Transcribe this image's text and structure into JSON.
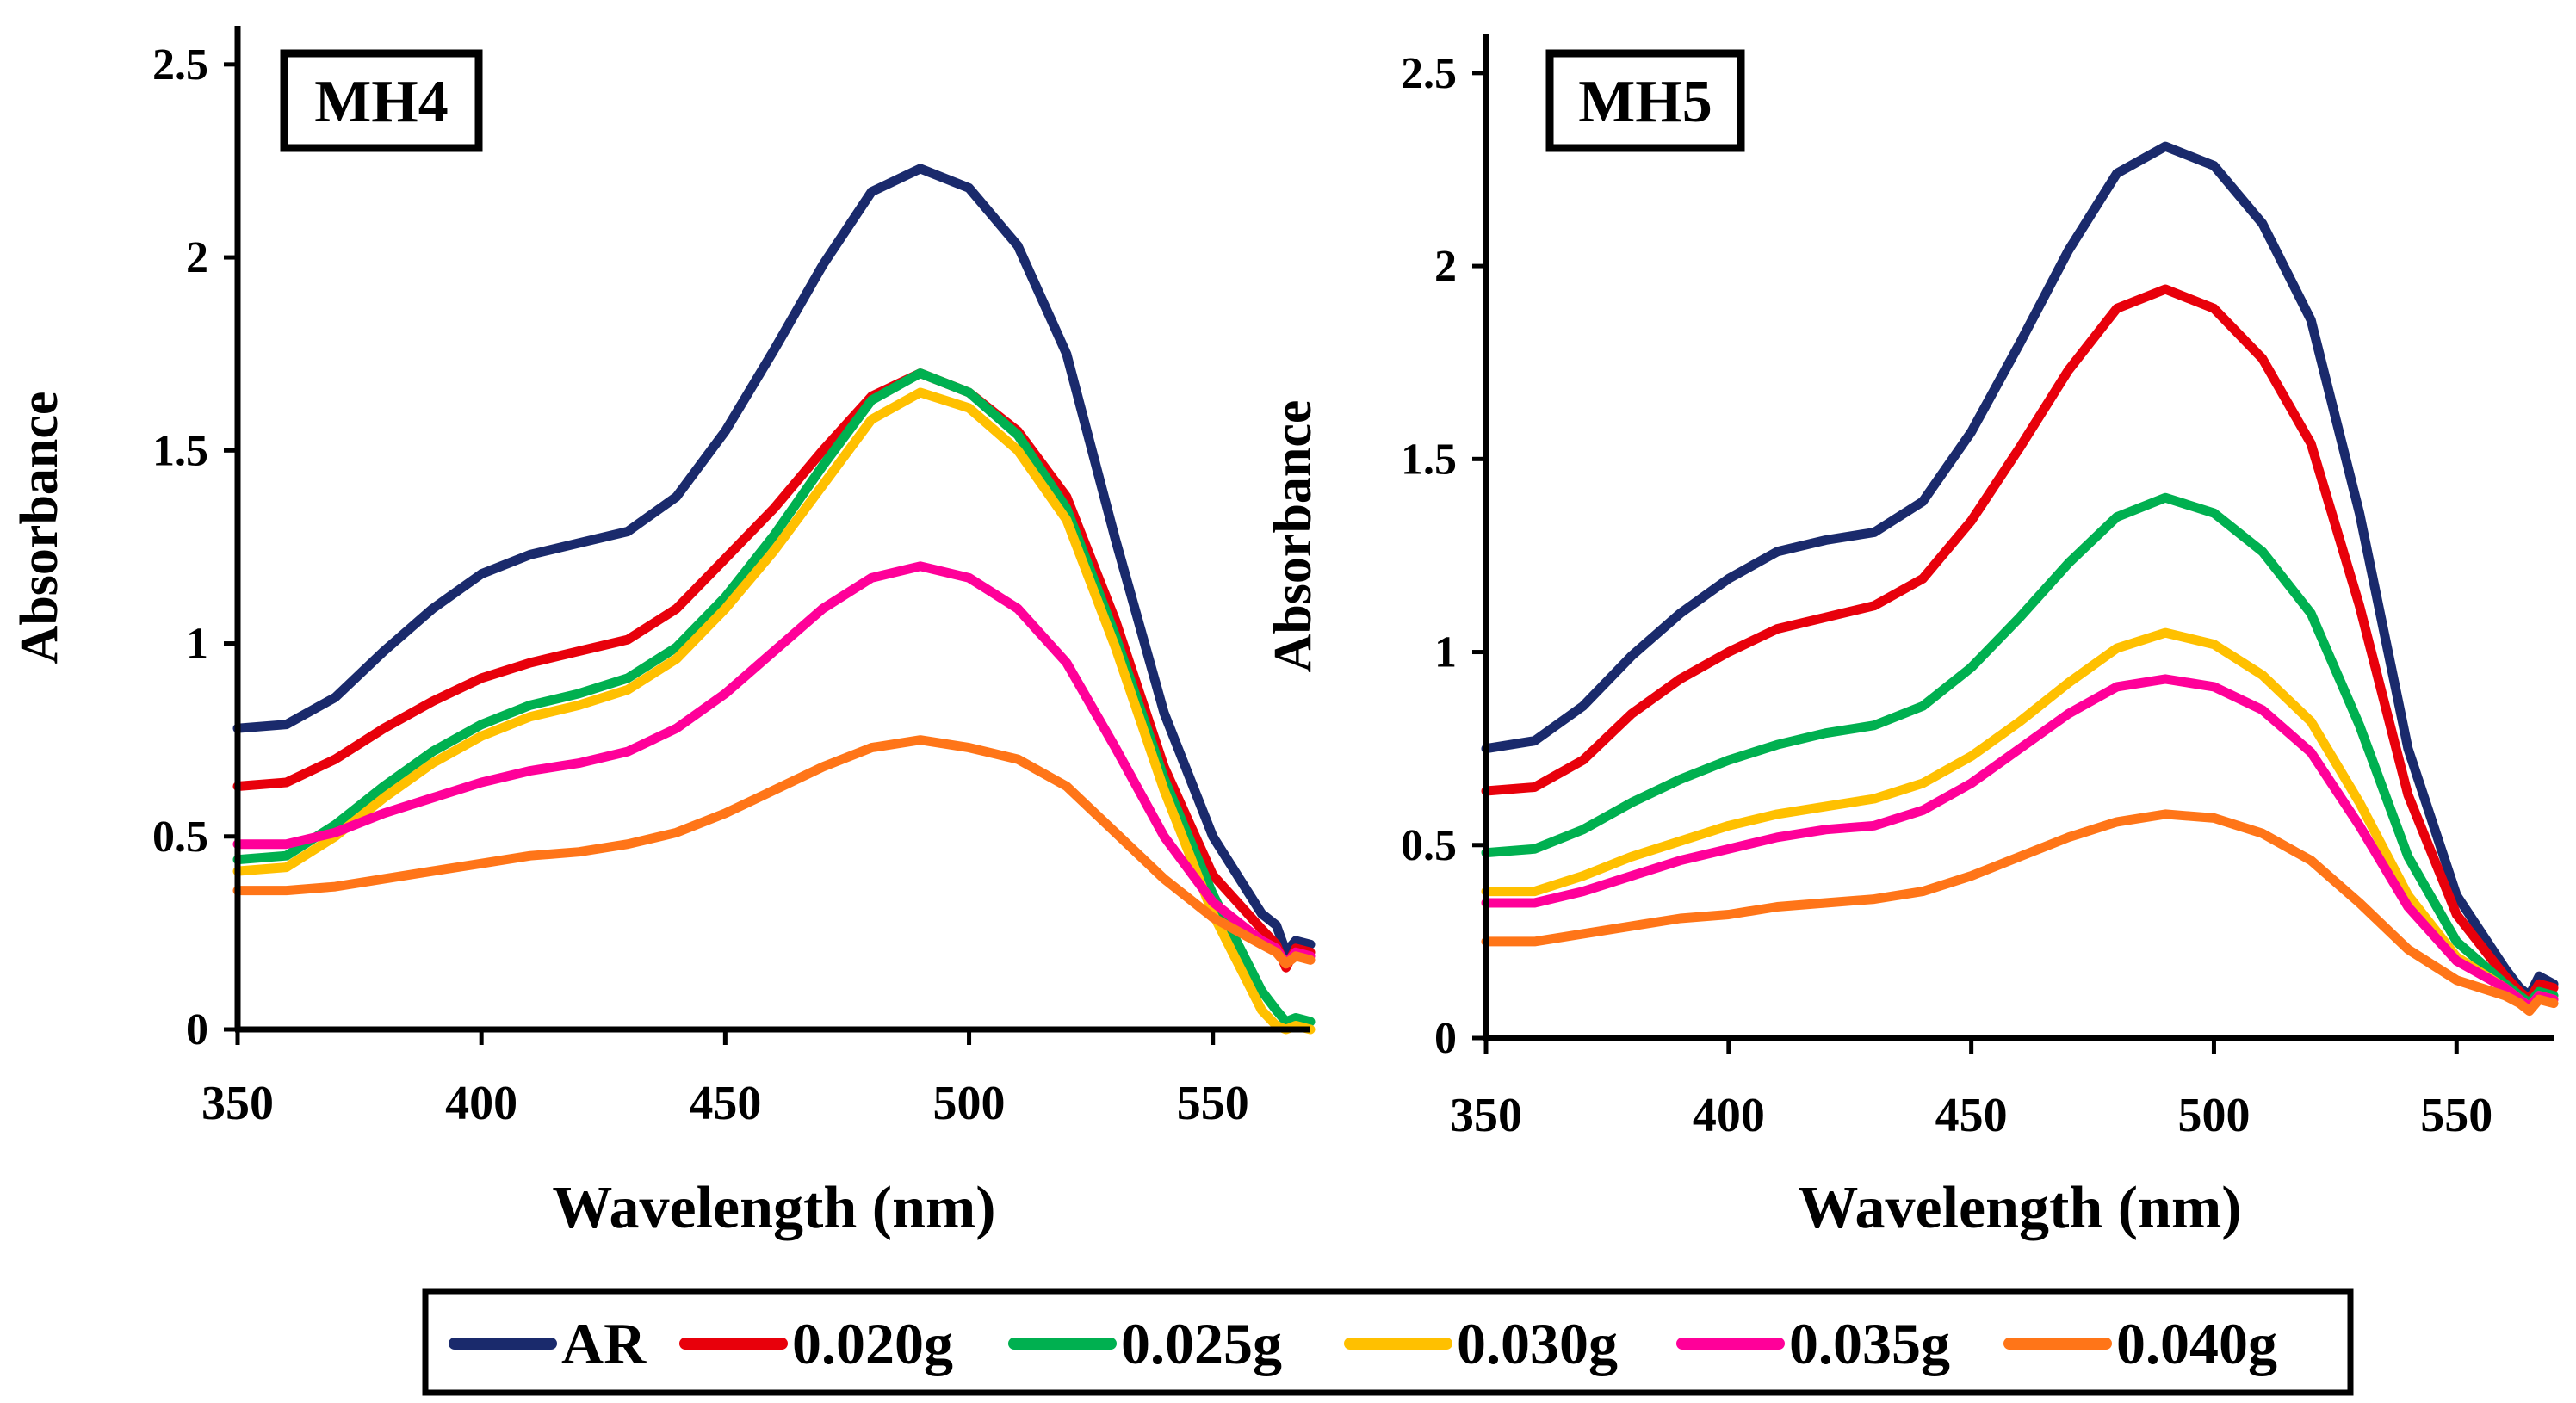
{
  "chart_data": [
    {
      "type": "line",
      "title": "MH4",
      "xlabel": "Wavelength (nm)",
      "ylabel": "Absorbance",
      "xlim": [
        350,
        570
      ],
      "ylim": [
        0,
        2.6
      ],
      "xticks": [
        350,
        400,
        450,
        500,
        550
      ],
      "yticks": [
        0,
        0.5,
        1,
        1.5,
        2,
        2.5
      ],
      "xtick_labels": [
        "350",
        "400",
        "450",
        "500",
        "550"
      ],
      "ytick_labels": [
        "0",
        "0.5",
        "1",
        "1.5",
        "2",
        "2.5"
      ],
      "grid": false,
      "series": [
        {
          "name": "AR",
          "color": "#1a2a6c",
          "x": [
            350,
            360,
            370,
            380,
            390,
            400,
            410,
            420,
            430,
            440,
            450,
            460,
            470,
            480,
            490,
            500,
            510,
            520,
            530,
            540,
            550,
            560,
            563,
            565,
            567,
            570
          ],
          "y": [
            0.78,
            0.79,
            0.86,
            0.98,
            1.09,
            1.18,
            1.23,
            1.26,
            1.29,
            1.38,
            1.55,
            1.76,
            1.98,
            2.17,
            2.23,
            2.18,
            2.03,
            1.75,
            1.27,
            0.82,
            0.5,
            0.3,
            0.27,
            0.2,
            0.23,
            0.22
          ]
        },
        {
          "name": "0.020g",
          "color": "#e8000b",
          "x": [
            350,
            360,
            370,
            380,
            390,
            400,
            410,
            420,
            430,
            440,
            450,
            460,
            470,
            480,
            490,
            500,
            510,
            520,
            530,
            540,
            550,
            560,
            563,
            565,
            567,
            570
          ],
          "y": [
            0.63,
            0.64,
            0.7,
            0.78,
            0.85,
            0.91,
            0.95,
            0.98,
            1.01,
            1.09,
            1.22,
            1.35,
            1.5,
            1.64,
            1.7,
            1.65,
            1.55,
            1.38,
            1.06,
            0.68,
            0.4,
            0.26,
            0.22,
            0.16,
            0.21,
            0.2
          ]
        },
        {
          "name": "0.025g",
          "color": "#00b050",
          "x": [
            350,
            360,
            370,
            380,
            390,
            400,
            410,
            420,
            430,
            440,
            450,
            460,
            470,
            480,
            490,
            500,
            510,
            520,
            530,
            540,
            550,
            560,
            563,
            565,
            567,
            570
          ],
          "y": [
            0.44,
            0.45,
            0.53,
            0.63,
            0.72,
            0.79,
            0.84,
            0.87,
            0.91,
            0.99,
            1.12,
            1.28,
            1.46,
            1.63,
            1.7,
            1.65,
            1.54,
            1.35,
            1.02,
            0.65,
            0.35,
            0.1,
            0.05,
            0.02,
            0.03,
            0.02
          ]
        },
        {
          "name": "0.030g",
          "color": "#ffc000",
          "x": [
            350,
            360,
            370,
            380,
            390,
            400,
            410,
            420,
            430,
            440,
            450,
            460,
            470,
            480,
            490,
            500,
            510,
            520,
            530,
            540,
            550,
            560,
            563,
            565,
            567,
            570
          ],
          "y": [
            0.41,
            0.42,
            0.5,
            0.6,
            0.69,
            0.76,
            0.81,
            0.84,
            0.88,
            0.96,
            1.09,
            1.24,
            1.41,
            1.58,
            1.65,
            1.61,
            1.5,
            1.32,
            0.99,
            0.62,
            0.3,
            0.05,
            0.01,
            0.0,
            0.01,
            0.0
          ]
        },
        {
          "name": "0.035g",
          "color": "#ff0099",
          "x": [
            350,
            360,
            370,
            380,
            390,
            400,
            410,
            420,
            430,
            440,
            450,
            460,
            470,
            480,
            490,
            500,
            510,
            520,
            530,
            540,
            550,
            560,
            563,
            565,
            567,
            570
          ],
          "y": [
            0.48,
            0.48,
            0.51,
            0.56,
            0.6,
            0.64,
            0.67,
            0.69,
            0.72,
            0.78,
            0.87,
            0.98,
            1.09,
            1.17,
            1.2,
            1.17,
            1.09,
            0.95,
            0.73,
            0.5,
            0.33,
            0.23,
            0.21,
            0.17,
            0.2,
            0.19
          ]
        },
        {
          "name": "0.040g",
          "color": "#ff7518",
          "x": [
            350,
            360,
            370,
            380,
            390,
            400,
            410,
            420,
            430,
            440,
            450,
            460,
            470,
            480,
            490,
            500,
            510,
            520,
            530,
            540,
            550,
            560,
            563,
            565,
            567,
            570
          ],
          "y": [
            0.36,
            0.36,
            0.37,
            0.39,
            0.41,
            0.43,
            0.45,
            0.46,
            0.48,
            0.51,
            0.56,
            0.62,
            0.68,
            0.73,
            0.75,
            0.73,
            0.7,
            0.63,
            0.51,
            0.39,
            0.29,
            0.22,
            0.2,
            0.17,
            0.19,
            0.18
          ]
        }
      ]
    },
    {
      "type": "line",
      "title": "MH5",
      "xlabel": "Wavelength (nm)",
      "ylabel": "Absorbance",
      "xlim": [
        350,
        570
      ],
      "ylim": [
        0,
        2.6
      ],
      "xticks": [
        350,
        400,
        450,
        500,
        550
      ],
      "yticks": [
        0,
        0.5,
        1,
        1.5,
        2,
        2.5
      ],
      "xtick_labels": [
        "350",
        "400",
        "450",
        "500",
        "550"
      ],
      "ytick_labels": [
        "0",
        "0.5",
        "1",
        "1.5",
        "2",
        "2.5"
      ],
      "grid": false,
      "series": [
        {
          "name": "AR",
          "color": "#1a2a6c",
          "x": [
            350,
            360,
            370,
            380,
            390,
            400,
            410,
            420,
            430,
            440,
            450,
            460,
            470,
            480,
            490,
            500,
            510,
            520,
            530,
            540,
            550,
            560,
            563,
            565,
            567,
            570
          ],
          "y": [
            0.75,
            0.77,
            0.86,
            0.99,
            1.1,
            1.19,
            1.26,
            1.29,
            1.31,
            1.39,
            1.57,
            1.8,
            2.04,
            2.24,
            2.31,
            2.26,
            2.11,
            1.86,
            1.36,
            0.75,
            0.37,
            0.18,
            0.13,
            0.11,
            0.16,
            0.14
          ]
        },
        {
          "name": "0.020g",
          "color": "#e8000b",
          "x": [
            350,
            360,
            370,
            380,
            390,
            400,
            410,
            420,
            430,
            440,
            450,
            460,
            470,
            480,
            490,
            500,
            510,
            520,
            530,
            540,
            550,
            560,
            563,
            565,
            567,
            570
          ],
          "y": [
            0.64,
            0.65,
            0.72,
            0.84,
            0.93,
            1.0,
            1.06,
            1.09,
            1.12,
            1.19,
            1.34,
            1.53,
            1.73,
            1.89,
            1.94,
            1.89,
            1.76,
            1.54,
            1.12,
            0.63,
            0.32,
            0.16,
            0.12,
            0.1,
            0.14,
            0.13
          ]
        },
        {
          "name": "0.025g",
          "color": "#00b050",
          "x": [
            350,
            360,
            370,
            380,
            390,
            400,
            410,
            420,
            430,
            440,
            450,
            460,
            470,
            480,
            490,
            500,
            510,
            520,
            530,
            540,
            550,
            560,
            563,
            565,
            567,
            570
          ],
          "y": [
            0.48,
            0.49,
            0.54,
            0.61,
            0.67,
            0.72,
            0.76,
            0.79,
            0.81,
            0.86,
            0.96,
            1.09,
            1.23,
            1.35,
            1.4,
            1.36,
            1.26,
            1.1,
            0.81,
            0.47,
            0.25,
            0.14,
            0.11,
            0.09,
            0.12,
            0.11
          ]
        },
        {
          "name": "0.030g",
          "color": "#ffc000",
          "x": [
            350,
            360,
            370,
            380,
            390,
            400,
            410,
            420,
            430,
            440,
            450,
            460,
            470,
            480,
            490,
            500,
            510,
            520,
            530,
            540,
            550,
            560,
            563,
            565,
            567,
            570
          ],
          "y": [
            0.38,
            0.38,
            0.42,
            0.47,
            0.51,
            0.55,
            0.58,
            0.6,
            0.62,
            0.66,
            0.73,
            0.82,
            0.92,
            1.01,
            1.05,
            1.02,
            0.94,
            0.82,
            0.61,
            0.37,
            0.21,
            0.13,
            0.1,
            0.08,
            0.11,
            0.1
          ]
        },
        {
          "name": "0.035g",
          "color": "#ff0099",
          "x": [
            350,
            360,
            370,
            380,
            390,
            400,
            410,
            420,
            430,
            440,
            450,
            460,
            470,
            480,
            490,
            500,
            510,
            520,
            530,
            540,
            550,
            560,
            563,
            565,
            567,
            570
          ],
          "y": [
            0.35,
            0.35,
            0.38,
            0.42,
            0.46,
            0.49,
            0.52,
            0.54,
            0.55,
            0.59,
            0.66,
            0.75,
            0.84,
            0.91,
            0.93,
            0.91,
            0.85,
            0.74,
            0.55,
            0.34,
            0.2,
            0.13,
            0.1,
            0.08,
            0.11,
            0.1
          ]
        },
        {
          "name": "0.040g",
          "color": "#ff7518",
          "x": [
            350,
            360,
            370,
            380,
            390,
            400,
            410,
            420,
            430,
            440,
            450,
            460,
            470,
            480,
            490,
            500,
            510,
            520,
            530,
            540,
            550,
            560,
            563,
            565,
            567,
            570
          ],
          "y": [
            0.25,
            0.25,
            0.27,
            0.29,
            0.31,
            0.32,
            0.34,
            0.35,
            0.36,
            0.38,
            0.42,
            0.47,
            0.52,
            0.56,
            0.58,
            0.57,
            0.53,
            0.46,
            0.35,
            0.23,
            0.15,
            0.11,
            0.09,
            0.07,
            0.1,
            0.09
          ]
        }
      ]
    }
  ],
  "legend": {
    "placement": "bottom-center",
    "entries": [
      {
        "label": "AR",
        "color": "#1a2a6c"
      },
      {
        "label": "0.020g",
        "color": "#e8000b"
      },
      {
        "label": "0.025g",
        "color": "#00b050"
      },
      {
        "label": "0.030g",
        "color": "#ffc000"
      },
      {
        "label": "0.035g",
        "color": "#ff0099"
      },
      {
        "label": "0.040g",
        "color": "#ff7518"
      }
    ]
  }
}
